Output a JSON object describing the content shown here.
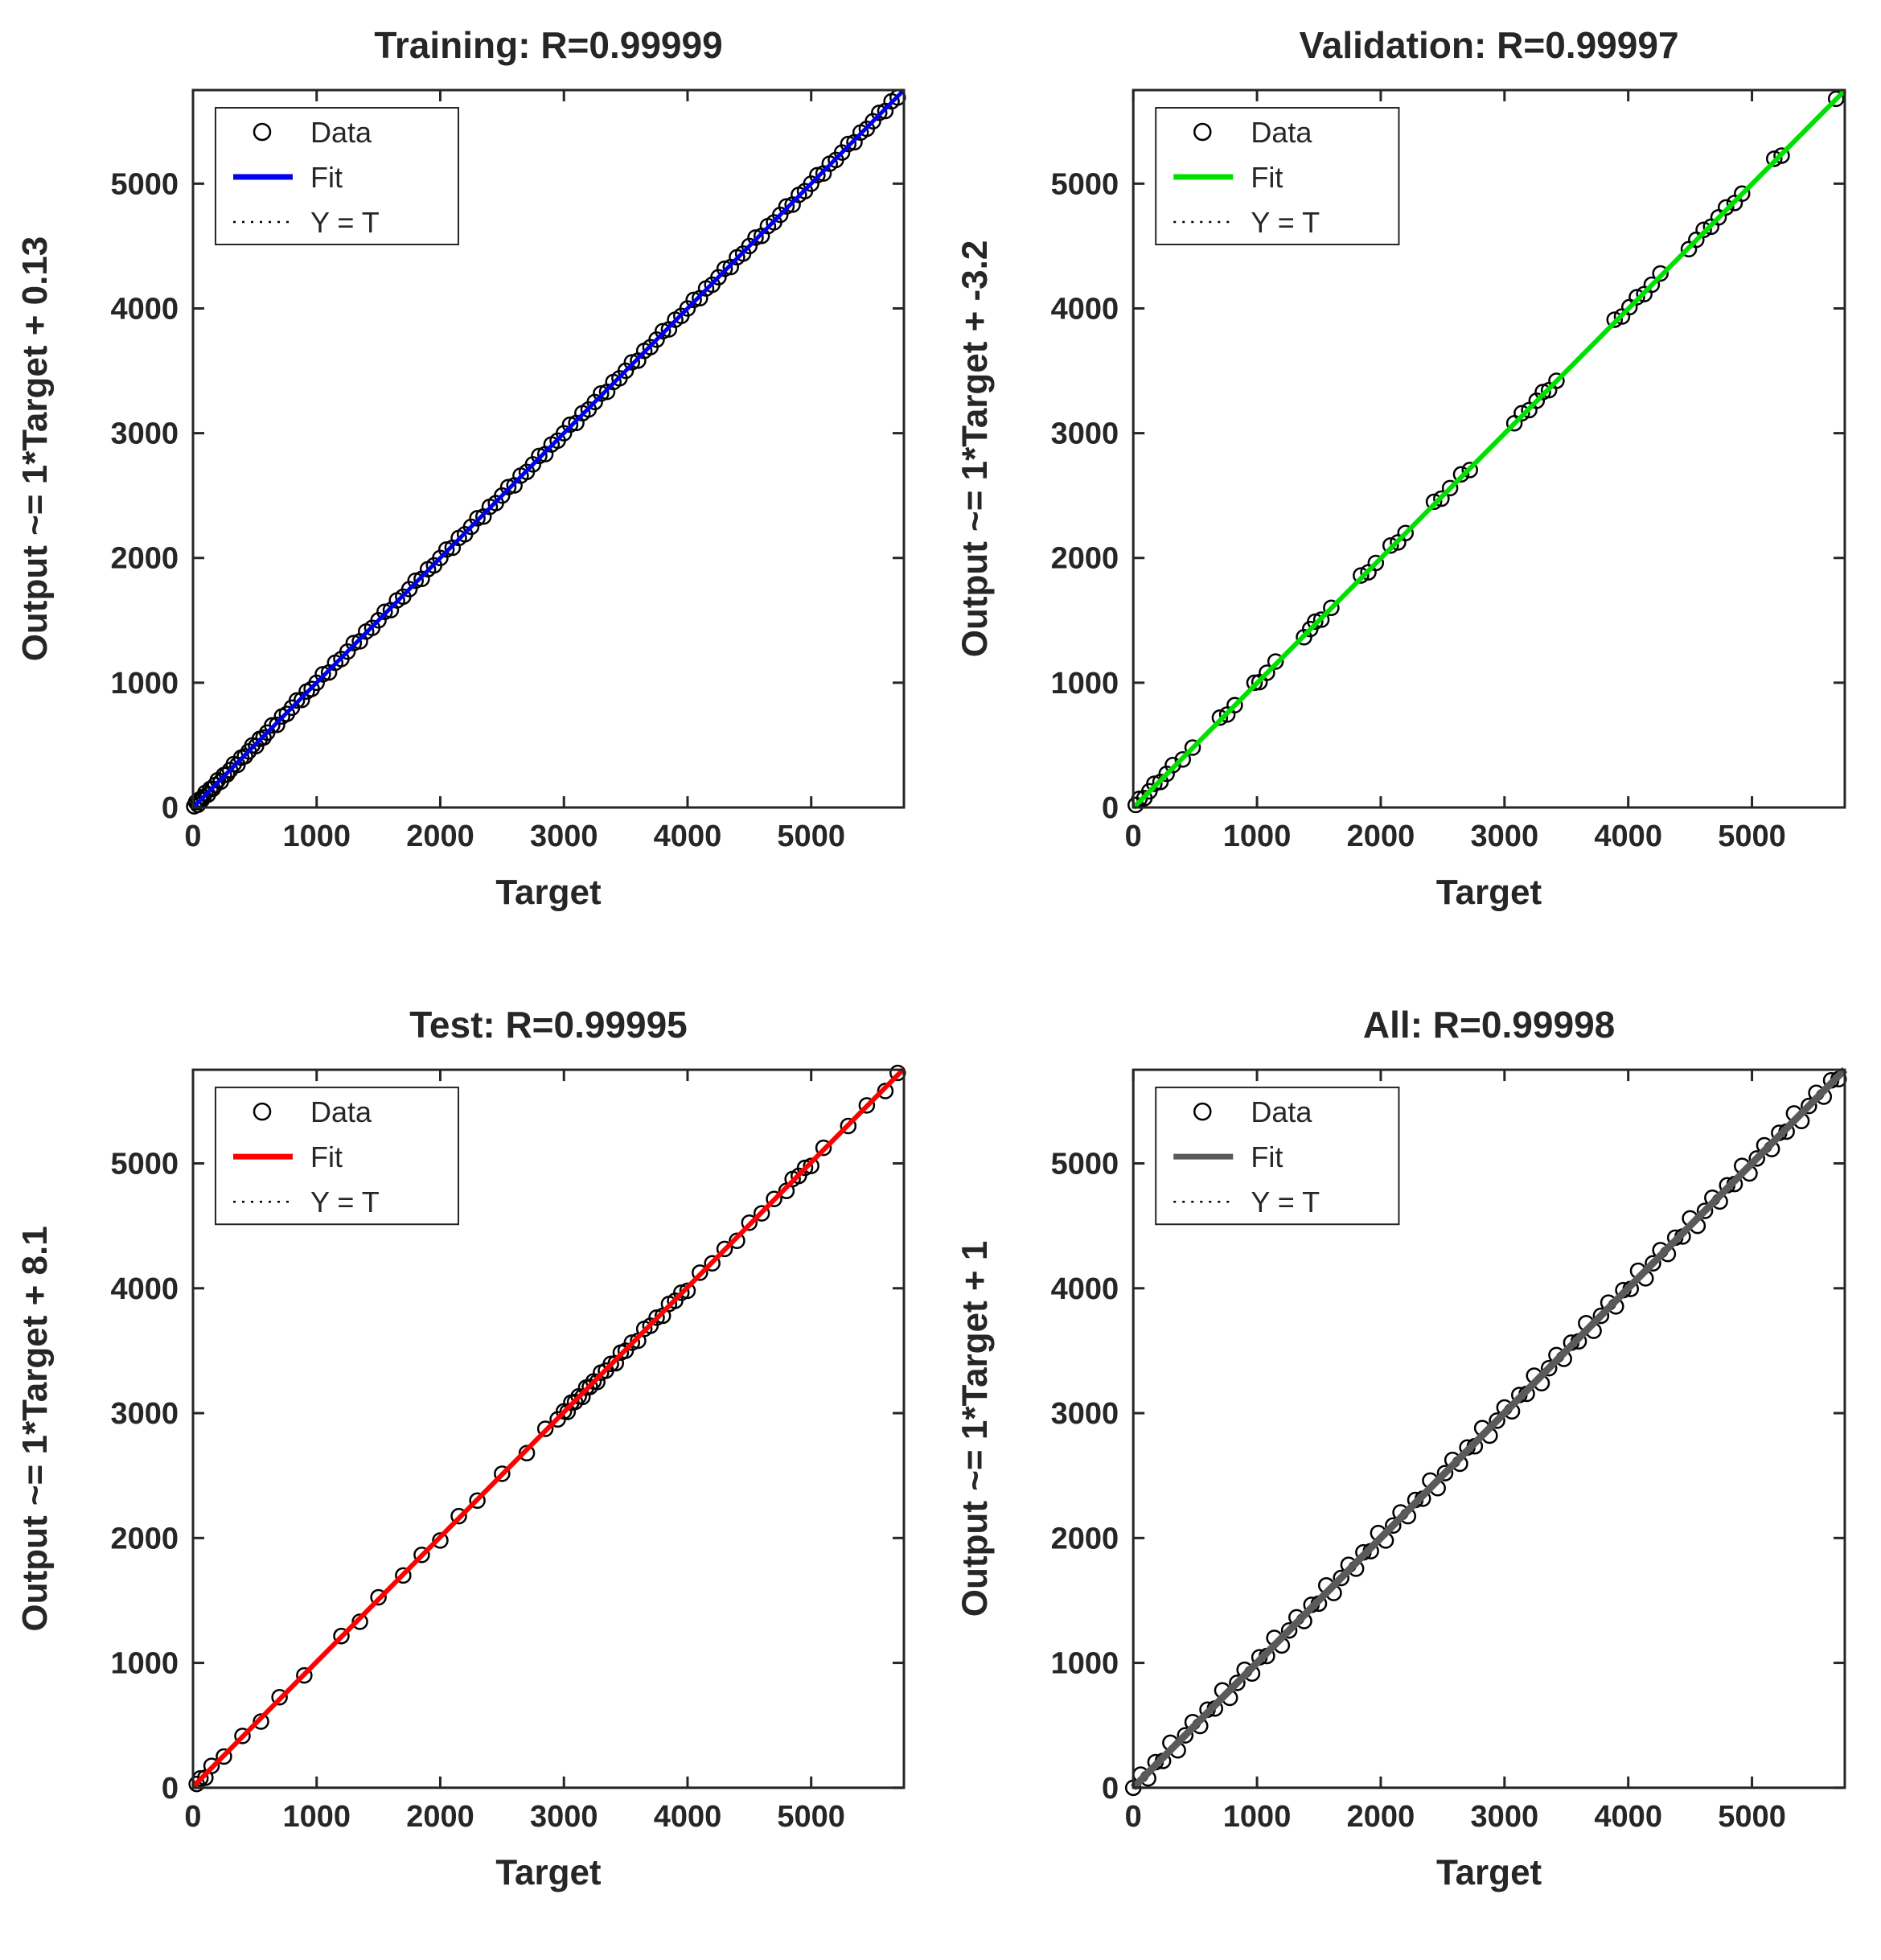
{
  "figure": {
    "background": "#ffffff",
    "text_color": "#262626",
    "axis_color": "#262626",
    "marker_color": "#000000",
    "identity_line_color": "#000000"
  },
  "legend_labels": {
    "data": "Data",
    "fit": "Fit",
    "yt": "Y = T"
  },
  "chart_data": [
    {
      "id": "training",
      "type": "scatter",
      "title": "Training: R=0.99999",
      "xlabel": "Target",
      "ylabel": "Output ~= 1*Target + 0.13",
      "r_value": 0.99999,
      "fit": {
        "slope": 1,
        "intercept": 0.13,
        "color": "#0000ee",
        "width": 5
      },
      "legend": [
        "Data",
        "Fit",
        "Y = T"
      ],
      "xlim": [
        0,
        5750
      ],
      "ylim": [
        0,
        5750
      ],
      "xticks": [
        0,
        1000,
        2000,
        3000,
        4000,
        5000
      ],
      "yticks": [
        0,
        1000,
        2000,
        3000,
        4000,
        5000
      ],
      "y_rule": "outputs lie on identity line y = x within marker size",
      "y_jitter_pattern": [
        0,
        18,
        -18,
        10,
        -10
      ],
      "points_x": [
        10,
        25,
        40,
        55,
        70,
        85,
        100,
        120,
        140,
        160,
        180,
        200,
        225,
        250,
        275,
        300,
        330,
        360,
        390,
        420,
        450,
        480,
        510,
        540,
        570,
        600,
        640,
        680,
        720,
        760,
        800,
        840,
        880,
        920,
        960,
        1000,
        1050,
        1100,
        1150,
        1200,
        1250,
        1300,
        1350,
        1400,
        1450,
        1500,
        1550,
        1600,
        1650,
        1700,
        1750,
        1800,
        1850,
        1900,
        1950,
        2000,
        2050,
        2100,
        2150,
        2200,
        2250,
        2300,
        2350,
        2400,
        2450,
        2500,
        2550,
        2600,
        2650,
        2700,
        2750,
        2800,
        2850,
        2900,
        2950,
        3000,
        3050,
        3100,
        3150,
        3200,
        3250,
        3300,
        3350,
        3400,
        3450,
        3500,
        3550,
        3600,
        3650,
        3700,
        3750,
        3800,
        3850,
        3900,
        3950,
        4000,
        4050,
        4100,
        4150,
        4200,
        4250,
        4300,
        4350,
        4400,
        4450,
        4500,
        4550,
        4600,
        4650,
        4700,
        4750,
        4800,
        4850,
        4900,
        4950,
        5000,
        5050,
        5100,
        5150,
        5200,
        5250,
        5300,
        5350,
        5400,
        5450,
        5500,
        5550,
        5600,
        5650,
        5700
      ]
    },
    {
      "id": "validation",
      "type": "scatter",
      "title": "Validation: R=0.99997",
      "xlabel": "Target",
      "ylabel": "Output ~= 1*Target + -3.2",
      "r_value": 0.99997,
      "fit": {
        "slope": 1,
        "intercept": -3.2,
        "color": "#00e000",
        "width": 6
      },
      "legend": [
        "Data",
        "Fit",
        "Y = T"
      ],
      "xlim": [
        0,
        5750
      ],
      "ylim": [
        0,
        5750
      ],
      "xticks": [
        0,
        1000,
        2000,
        3000,
        4000,
        5000
      ],
      "yticks": [
        0,
        1000,
        2000,
        3000,
        4000,
        5000
      ],
      "y_rule": "outputs lie on identity line y = x within marker size",
      "y_jitter_pattern": [
        0,
        20,
        -15
      ],
      "points_x": [
        20,
        50,
        90,
        130,
        170,
        220,
        270,
        320,
        400,
        480,
        700,
        760,
        820,
        980,
        1020,
        1080,
        1150,
        1380,
        1430,
        1470,
        1520,
        1600,
        1840,
        1900,
        1960,
        2080,
        2140,
        2200,
        2430,
        2490,
        2560,
        2650,
        2720,
        3080,
        3140,
        3200,
        3260,
        3310,
        3360,
        3420,
        3890,
        3950,
        4010,
        4070,
        4130,
        4190,
        4260,
        4490,
        4550,
        4610,
        4670,
        4730,
        4790,
        4860,
        4920,
        5180,
        5240,
        5680
      ]
    },
    {
      "id": "test",
      "type": "scatter",
      "title": "Test: R=0.99995",
      "xlabel": "Target",
      "ylabel": "Output ~= 1*Target + 8.1",
      "r_value": 0.99995,
      "fit": {
        "slope": 1,
        "intercept": 8.1,
        "color": "#ff0000",
        "width": 6
      },
      "legend": [
        "Data",
        "Fit",
        "Y = T"
      ],
      "xlim": [
        0,
        5750
      ],
      "ylim": [
        0,
        5750
      ],
      "xticks": [
        0,
        1000,
        2000,
        3000,
        4000,
        5000
      ],
      "yticks": [
        0,
        1000,
        2000,
        3000,
        4000,
        5000
      ],
      "y_rule": "outputs lie on identity line y = x within marker size",
      "y_jitter_pattern": [
        0,
        15,
        -20,
        25
      ],
      "points_x": [
        30,
        60,
        100,
        150,
        250,
        400,
        550,
        700,
        900,
        1200,
        1350,
        1500,
        1700,
        1850,
        2000,
        2150,
        2300,
        2500,
        2700,
        2850,
        2950,
        3000,
        3030,
        3060,
        3090,
        3120,
        3150,
        3180,
        3210,
        3240,
        3270,
        3300,
        3340,
        3380,
        3420,
        3460,
        3500,
        3550,
        3600,
        3650,
        3700,
        3750,
        3800,
        3850,
        3900,
        3950,
        4000,
        4100,
        4200,
        4300,
        4400,
        4500,
        4600,
        4700,
        4800,
        4850,
        4900,
        4950,
        5000,
        5100,
        5300,
        5450,
        5600,
        5700
      ]
    },
    {
      "id": "all",
      "type": "scatter",
      "title": "All: R=0.99998",
      "xlabel": "Target",
      "ylabel": "Output ~= 1*Target + 1",
      "r_value": 0.99998,
      "fit": {
        "slope": 1,
        "intercept": 1,
        "color": "#5a5a5a",
        "width": 9
      },
      "legend": [
        "Data",
        "Fit",
        "Y = T"
      ],
      "xlim": [
        0,
        5750
      ],
      "ylim": [
        0,
        5750
      ],
      "xticks": [
        0,
        1000,
        2000,
        3000,
        4000,
        5000
      ],
      "yticks": [
        0,
        1000,
        2000,
        3000,
        4000,
        5000
      ],
      "y_rule": "outputs lie on identity line y = x within marker size",
      "y_jitter_pattern": [
        0,
        45,
        -45,
        25,
        -25,
        60,
        -60
      ],
      "points_x": [
        0,
        60,
        120,
        180,
        240,
        300,
        360,
        420,
        480,
        540,
        600,
        660,
        720,
        780,
        840,
        900,
        960,
        1020,
        1080,
        1140,
        1200,
        1260,
        1320,
        1380,
        1440,
        1500,
        1560,
        1620,
        1680,
        1740,
        1800,
        1860,
        1920,
        1980,
        2040,
        2100,
        2160,
        2220,
        2280,
        2340,
        2400,
        2460,
        2520,
        2580,
        2640,
        2700,
        2760,
        2820,
        2880,
        2940,
        3000,
        3060,
        3120,
        3180,
        3240,
        3300,
        3360,
        3420,
        3480,
        3540,
        3600,
        3660,
        3720,
        3780,
        3840,
        3900,
        3960,
        4020,
        4080,
        4140,
        4200,
        4260,
        4320,
        4380,
        4440,
        4500,
        4560,
        4620,
        4680,
        4740,
        4800,
        4860,
        4920,
        4980,
        5040,
        5100,
        5160,
        5220,
        5280,
        5340,
        5400,
        5460,
        5520,
        5580,
        5640,
        5700
      ]
    }
  ]
}
